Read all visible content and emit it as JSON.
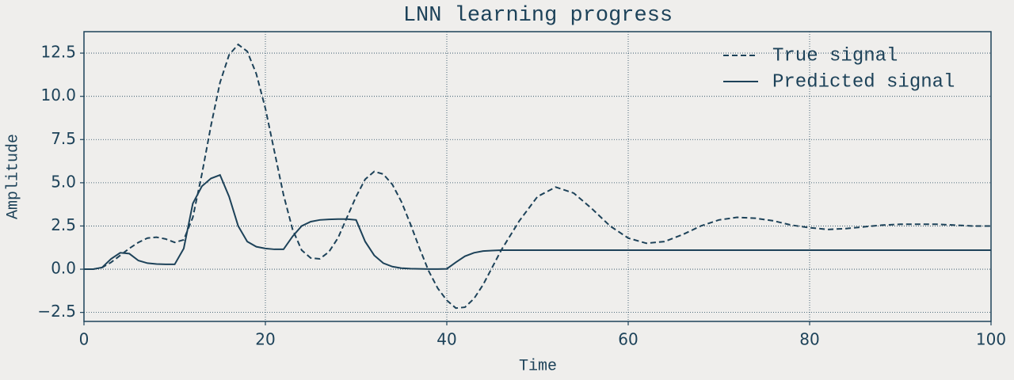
{
  "chart_data": {
    "type": "line",
    "title": "LNN learning progress",
    "xlabel": "Time",
    "ylabel": "Amplitude",
    "x": [
      0,
      1,
      2,
      3,
      4,
      5,
      6,
      7,
      8,
      9,
      10,
      11,
      12,
      13,
      14,
      15,
      16,
      17,
      18,
      19,
      20,
      21,
      22,
      23,
      24,
      25,
      26,
      27,
      28,
      29,
      30,
      31,
      32,
      33,
      34,
      35,
      36,
      37,
      38,
      39,
      40,
      41,
      42,
      43,
      44,
      45,
      46,
      48,
      50,
      52,
      54,
      56,
      58,
      60,
      62,
      64,
      66,
      68,
      70,
      72,
      74,
      76,
      78,
      80,
      82,
      84,
      86,
      88,
      90,
      92,
      94,
      96,
      98,
      100
    ],
    "series": [
      {
        "name": "True signal",
        "color": "#1d4259",
        "linestyle": "dashed",
        "values": [
          0,
          0,
          0.1,
          0.4,
          0.8,
          1.2,
          1.55,
          1.8,
          1.85,
          1.75,
          1.55,
          1.7,
          3.0,
          5.5,
          8.3,
          10.8,
          12.4,
          13.0,
          12.6,
          11.3,
          9.3,
          6.8,
          4.3,
          2.3,
          1.1,
          0.65,
          0.6,
          1.0,
          1.8,
          3.0,
          4.2,
          5.2,
          5.65,
          5.5,
          4.9,
          3.9,
          2.6,
          1.2,
          -0.1,
          -1.1,
          -1.8,
          -2.25,
          -2.2,
          -1.7,
          -0.9,
          0.1,
          1.1,
          2.8,
          4.2,
          4.75,
          4.4,
          3.5,
          2.5,
          1.8,
          1.5,
          1.6,
          2.0,
          2.5,
          2.85,
          3.0,
          2.95,
          2.8,
          2.55,
          2.4,
          2.3,
          2.35,
          2.45,
          2.55,
          2.6,
          2.6,
          2.6,
          2.55,
          2.5,
          2.5
        ]
      },
      {
        "name": "Predicted signal",
        "color": "#1d4259",
        "linestyle": "solid",
        "values": [
          0,
          0,
          0.1,
          0.6,
          0.95,
          0.9,
          0.5,
          0.35,
          0.3,
          0.28,
          0.28,
          1.2,
          3.8,
          4.8,
          5.25,
          5.45,
          4.2,
          2.5,
          1.6,
          1.3,
          1.2,
          1.15,
          1.15,
          1.9,
          2.5,
          2.75,
          2.85,
          2.88,
          2.9,
          2.9,
          2.85,
          1.6,
          0.8,
          0.35,
          0.15,
          0.06,
          0.03,
          0.02,
          0.01,
          0.01,
          0.02,
          0.4,
          0.75,
          0.95,
          1.05,
          1.08,
          1.1,
          1.1,
          1.1,
          1.1,
          1.1,
          1.1,
          1.1,
          1.1,
          1.1,
          1.1,
          1.1,
          1.1,
          1.1,
          1.1,
          1.1,
          1.1,
          1.1,
          1.1,
          1.1,
          1.1,
          1.1,
          1.1,
          1.1,
          1.1,
          1.1,
          1.1,
          1.1,
          1.1
        ]
      }
    ],
    "xlim": [
      0,
      100
    ],
    "xticks": [
      0,
      20,
      40,
      60,
      80,
      100
    ],
    "ylim": [
      -3.02,
      13.74
    ],
    "yticks": [
      {
        "value": -2.5,
        "label": "−2.5"
      },
      {
        "value": 0,
        "label": "0.0"
      },
      {
        "value": 2.5,
        "label": "2.5"
      },
      {
        "value": 5,
        "label": "5.0"
      },
      {
        "value": 7.5,
        "label": "7.5"
      },
      {
        "value": 10,
        "label": "10.0"
      },
      {
        "value": 12.5,
        "label": "12.5"
      }
    ],
    "grid": true,
    "legend": "upper right"
  }
}
